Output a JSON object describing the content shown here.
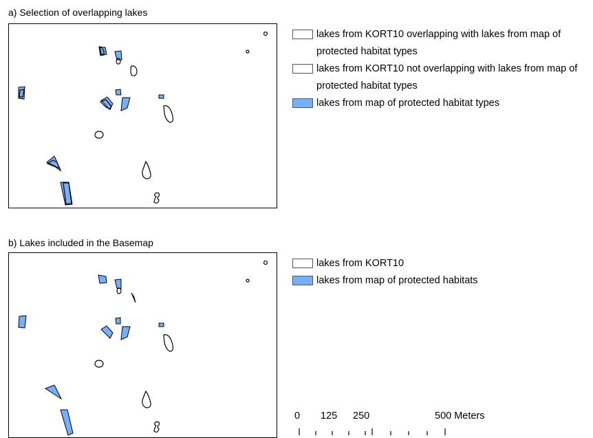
{
  "panel_a": {
    "title": "a) Selection of overlapping lakes",
    "legend": [
      {
        "label": "lakes from KORT10 overlapping with lakes from map of protected habitat types",
        "fill": "#ffffff"
      },
      {
        "label": "lakes from KORT10 not overlapping with lakes from map of protected habitat types",
        "fill": "#ffffff"
      },
      {
        "label": "lakes from map of protected habitat types",
        "fill": "#75afff"
      }
    ]
  },
  "panel_b": {
    "title": "b) Lakes included in the Basemap",
    "legend": [
      {
        "label": "lakes from KORT10",
        "fill": "#ffffff"
      },
      {
        "label": "lakes from map of protected habitats",
        "fill": "#75afff"
      }
    ]
  },
  "scale_bar": {
    "labels": [
      "0",
      "125",
      "250",
      "500 Meters"
    ]
  },
  "colors": {
    "protected_habitat": "#75afff",
    "kort10": "#ffffff",
    "outline": "#000000"
  }
}
